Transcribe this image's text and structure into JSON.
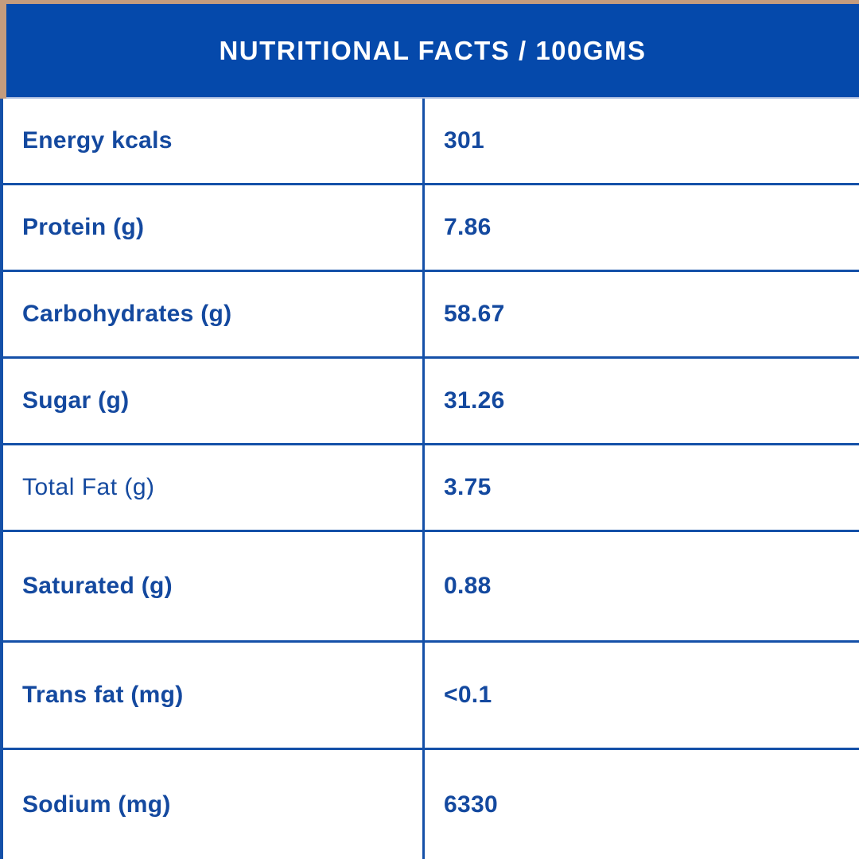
{
  "header": {
    "title": "NUTRITIONAL FACTS / 100GMS"
  },
  "table": {
    "columns": [
      "nutrient",
      "amount_per_100g"
    ],
    "rows": [
      {
        "label": "Energy kcals",
        "value": "301",
        "emphasized": true
      },
      {
        "label": "Protein (g)",
        "value": "7.86",
        "emphasized": true
      },
      {
        "label": "Carbohydrates (g)",
        "value": "58.67",
        "emphasized": true
      },
      {
        "label": "Sugar (g)",
        "value": "31.26",
        "emphasized": true
      },
      {
        "label": "Total Fat (g)",
        "value": "3.75",
        "emphasized": false
      },
      {
        "label": "Saturated (g)",
        "value": "0.88",
        "emphasized": true
      },
      {
        "label": "Trans fat (mg)",
        "value": "<0.1",
        "emphasized": true
      },
      {
        "label": "Sodium (mg)",
        "value": "6330",
        "emphasized": true
      }
    ]
  },
  "colors": {
    "header_background": "#0549ab",
    "border_blue": "#1450a8",
    "text_blue": "#14499f",
    "header_text": "#ffffff",
    "tan_accent": "#c49c7e",
    "row_background": "#ffffff"
  }
}
